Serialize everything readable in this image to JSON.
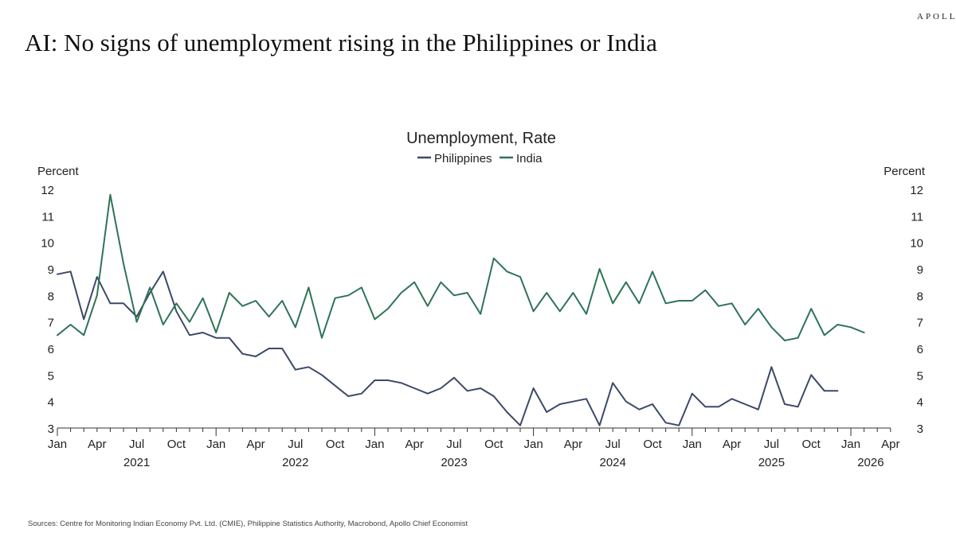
{
  "brand": "APOLLO",
  "page_title": "AI: No signs of unemployment rising in the Philippines or India",
  "source": "Sources: Centre for Monitoring Indian Economy Pvt. Ltd. (CMIE), Philippine Statistics Authority, Macrobond, Apollo Chief Economist",
  "colors": {
    "philippines": "#3b4a68",
    "india": "#2e7456"
  },
  "chart_data": {
    "type": "line",
    "title": "Unemployment, Rate",
    "ylabel_left": "Percent",
    "ylabel_right": "Percent",
    "ylim": [
      3,
      12
    ],
    "yticks": [
      "3",
      "4",
      "5",
      "6",
      "7",
      "8",
      "9",
      "10",
      "11",
      "12"
    ],
    "x_start": "2021-01",
    "x_end": "2026-04",
    "month_ticks": [
      {
        "label": "Jan",
        "index": 0
      },
      {
        "label": "Apr",
        "index": 3
      },
      {
        "label": "Jul",
        "index": 6
      },
      {
        "label": "Oct",
        "index": 9
      },
      {
        "label": "Jan",
        "index": 12
      },
      {
        "label": "Apr",
        "index": 15
      },
      {
        "label": "Jul",
        "index": 18
      },
      {
        "label": "Oct",
        "index": 21
      },
      {
        "label": "Jan",
        "index": 24
      },
      {
        "label": "Apr",
        "index": 27
      },
      {
        "label": "Jul",
        "index": 30
      },
      {
        "label": "Oct",
        "index": 33
      },
      {
        "label": "Jan",
        "index": 36
      },
      {
        "label": "Apr",
        "index": 39
      },
      {
        "label": "Jul",
        "index": 42
      },
      {
        "label": "Oct",
        "index": 45
      },
      {
        "label": "Jan",
        "index": 48
      },
      {
        "label": "Apr",
        "index": 51
      },
      {
        "label": "Jul",
        "index": 54
      },
      {
        "label": "Oct",
        "index": 57
      },
      {
        "label": "Jan",
        "index": 60
      },
      {
        "label": "Apr",
        "index": 63
      }
    ],
    "year_ticks": [
      {
        "label": "2021",
        "index": 6
      },
      {
        "label": "2022",
        "index": 18
      },
      {
        "label": "2023",
        "index": 30
      },
      {
        "label": "2024",
        "index": 42
      },
      {
        "label": "2025",
        "index": 54
      },
      {
        "label": "2026",
        "index": 61.5
      }
    ],
    "series": [
      {
        "name": "Philippines",
        "start_index": 0,
        "values": [
          8.8,
          8.9,
          7.1,
          8.7,
          7.7,
          7.7,
          7.2,
          8.1,
          8.9,
          7.4,
          6.5,
          6.6,
          6.4,
          6.4,
          5.8,
          5.7,
          6.0,
          6.0,
          5.2,
          5.3,
          5.0,
          4.6,
          4.2,
          4.3,
          4.8,
          4.8,
          4.7,
          4.5,
          4.3,
          4.5,
          4.9,
          4.4,
          4.5,
          4.2,
          3.6,
          3.1,
          4.5,
          3.6,
          3.9,
          4.0,
          4.1,
          3.1,
          4.7,
          4.0,
          3.7,
          3.9,
          3.2,
          3.1,
          4.3,
          3.8,
          3.8,
          4.1,
          3.9,
          3.7,
          5.3,
          3.9,
          3.8,
          5.0,
          4.4,
          4.4
        ]
      },
      {
        "name": "India",
        "start_index": 0,
        "values": [
          6.5,
          6.9,
          6.5,
          8.0,
          11.8,
          9.2,
          7.0,
          8.3,
          6.9,
          7.7,
          7.0,
          7.9,
          6.6,
          8.1,
          7.6,
          7.8,
          7.2,
          7.8,
          6.8,
          8.3,
          6.4,
          7.9,
          8.0,
          8.3,
          7.1,
          7.5,
          8.1,
          8.5,
          7.6,
          8.5,
          8.0,
          8.1,
          7.3,
          9.4,
          8.9,
          8.7,
          7.4,
          8.1,
          7.4,
          8.1,
          7.3,
          9.0,
          7.7,
          8.5,
          7.7,
          8.9,
          7.7,
          7.8,
          7.8,
          8.2,
          7.6,
          7.7,
          6.9,
          7.5,
          6.8,
          6.3,
          6.4,
          7.5,
          6.5,
          6.9,
          6.8,
          6.6
        ]
      }
    ]
  }
}
